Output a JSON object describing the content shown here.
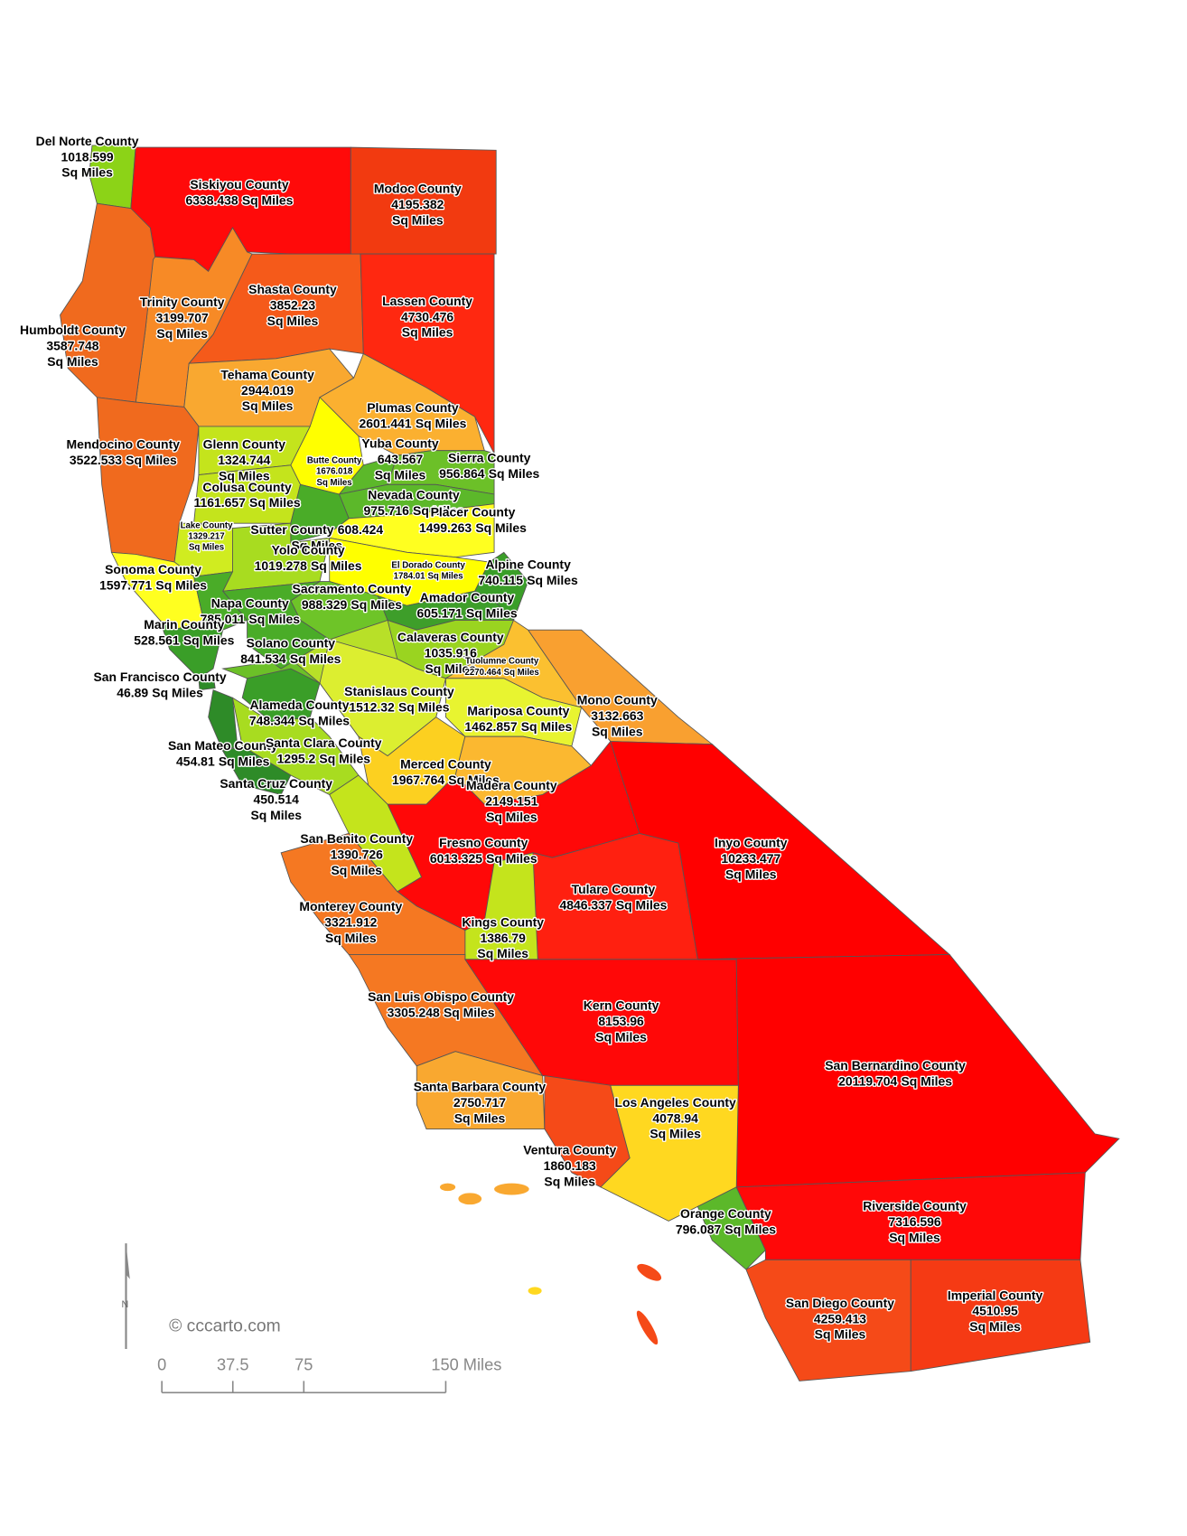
{
  "counties": [
    {
      "name": "Del Norte County",
      "area": 1018.599,
      "color": "#8cd317"
    },
    {
      "name": "Siskiyou County",
      "area": 6338.438,
      "color": "#ff0a0a"
    },
    {
      "name": "Modoc County",
      "area": 4195.382,
      "color": "#f23a10"
    },
    {
      "name": "Shasta County",
      "area": 3852.23,
      "color": "#f55a1a"
    },
    {
      "name": "Lassen County",
      "area": 4730.476,
      "color": "#ff2810"
    },
    {
      "name": "Trinity County",
      "area": 3199.707,
      "color": "#f78a26"
    },
    {
      "name": "Humboldt County",
      "area": 3587.748,
      "color": "#f06a1e"
    },
    {
      "name": "Tehama County",
      "area": 2944.019,
      "color": "#f9a830"
    },
    {
      "name": "Plumas County",
      "area": 2601.441,
      "color": "#fbb030"
    },
    {
      "name": "Mendocino County",
      "area": 3522.533,
      "color": "#f06a1e"
    },
    {
      "name": "Glenn County",
      "area": 1324.744,
      "color": "#c4e41c"
    },
    {
      "name": "Butte County",
      "area": 1676.018,
      "color": "#ffff00"
    },
    {
      "name": "Yuba County",
      "area": 643.567,
      "color": "#5cb82a"
    },
    {
      "name": "Sierra County",
      "area": 956.864,
      "color": "#6cc028"
    },
    {
      "name": "Colusa County",
      "area": 1161.657,
      "color": "#c4e41c"
    },
    {
      "name": "Nevada County",
      "area": 975.716,
      "color": "#5cb82a"
    },
    {
      "name": "Placer County",
      "area": 1499.263,
      "color": "#ffff20"
    },
    {
      "name": "Lake County",
      "area": 1329.217,
      "color": "#d0ec20"
    },
    {
      "name": "Sutter County",
      "area": 608.424,
      "color": "#4aac28"
    },
    {
      "name": "Yolo County",
      "area": 1019.278,
      "color": "#a8dc20"
    },
    {
      "name": "El Dorado County",
      "area": 1784.01,
      "color": "#ffff00"
    },
    {
      "name": "Alpine County",
      "area": 740.115,
      "color": "#3a9e28"
    },
    {
      "name": "Sonoma County",
      "area": 1597.771,
      "color": "#ffff20"
    },
    {
      "name": "Sacramento County",
      "area": 988.329,
      "color": "#6ec428"
    },
    {
      "name": "Napa County",
      "area": 785.011,
      "color": "#4aac28"
    },
    {
      "name": "Amador County",
      "area": 605.171,
      "color": "#3e9e2a"
    },
    {
      "name": "Marin County",
      "area": 528.561,
      "color": "#3a9e28"
    },
    {
      "name": "Calaveras County",
      "area": 1035.916,
      "color": "#9ad420"
    },
    {
      "name": "Solano County",
      "area": 841.534,
      "color": "#4aac28"
    },
    {
      "name": "Tuolumne County",
      "area": 2270.464,
      "color": "#fbc030"
    },
    {
      "name": "San Francisco County",
      "area": 46.89,
      "color": "#2e8b28"
    },
    {
      "name": "Alameda County",
      "area": 748.344,
      "color": "#3a9e28"
    },
    {
      "name": "Stanislaus County",
      "area": 1512.32,
      "color": "#dcee30"
    },
    {
      "name": "Mono County",
      "area": 3132.663,
      "color": "#f9a030"
    },
    {
      "name": "Mariposa County",
      "area": 1462.857,
      "color": "#e8f430"
    },
    {
      "name": "San Mateo County",
      "area": 454.81,
      "color": "#2e8b28"
    },
    {
      "name": "Santa Clara County",
      "area": 1295.2,
      "color": "#a8dc20"
    },
    {
      "name": "Merced County",
      "area": 1967.764,
      "color": "#fcd020"
    },
    {
      "name": "Santa Cruz County",
      "area": 450.514,
      "color": "#2e8b28"
    },
    {
      "name": "Madera County",
      "area": 2149.151,
      "color": "#fbb830"
    },
    {
      "name": "San Benito County",
      "area": 1390.726,
      "color": "#c4e41c"
    },
    {
      "name": "Fresno County",
      "area": 6013.325,
      "color": "#ff0808"
    },
    {
      "name": "Inyo County",
      "area": 10233.477,
      "color": "#ff0000"
    },
    {
      "name": "Tulare County",
      "area": 4846.337,
      "color": "#ff2010"
    },
    {
      "name": "Monterey County",
      "area": 3321.912,
      "color": "#f57822"
    },
    {
      "name": "Kings County",
      "area": 1386.79,
      "color": "#c4e41c"
    },
    {
      "name": "San Luis Obispo County",
      "area": 3305.248,
      "color": "#f57822"
    },
    {
      "name": "Kern County",
      "area": 8153.96,
      "color": "#ff0808"
    },
    {
      "name": "San Bernardino County",
      "area": 20119.704,
      "color": "#ff0000"
    },
    {
      "name": "Santa Barbara County",
      "area": 2750.717,
      "color": "#f9a830"
    },
    {
      "name": "Los Angeles County",
      "area": 4078.94,
      "color": "#f54a18"
    },
    {
      "name": "Ventura County",
      "area": 1860.183,
      "color": "#ffd820"
    },
    {
      "name": "Orange County",
      "area": 796.087,
      "color": "#5cb82a"
    },
    {
      "name": "Riverside County",
      "area": 7316.596,
      "color": "#ff0808"
    },
    {
      "name": "San Diego County",
      "area": 4259.413,
      "color": "#f54a18"
    },
    {
      "name": "Imperial County",
      "area": 4510.95,
      "color": "#f53a14"
    }
  ],
  "unit": "Sq Miles",
  "credit": "© cccarto.com",
  "north_label": "N",
  "scale_bar": {
    "ticks": [
      0,
      37.5,
      75,
      {
        "value": 150,
        "label": "150 Miles"
      }
    ]
  }
}
